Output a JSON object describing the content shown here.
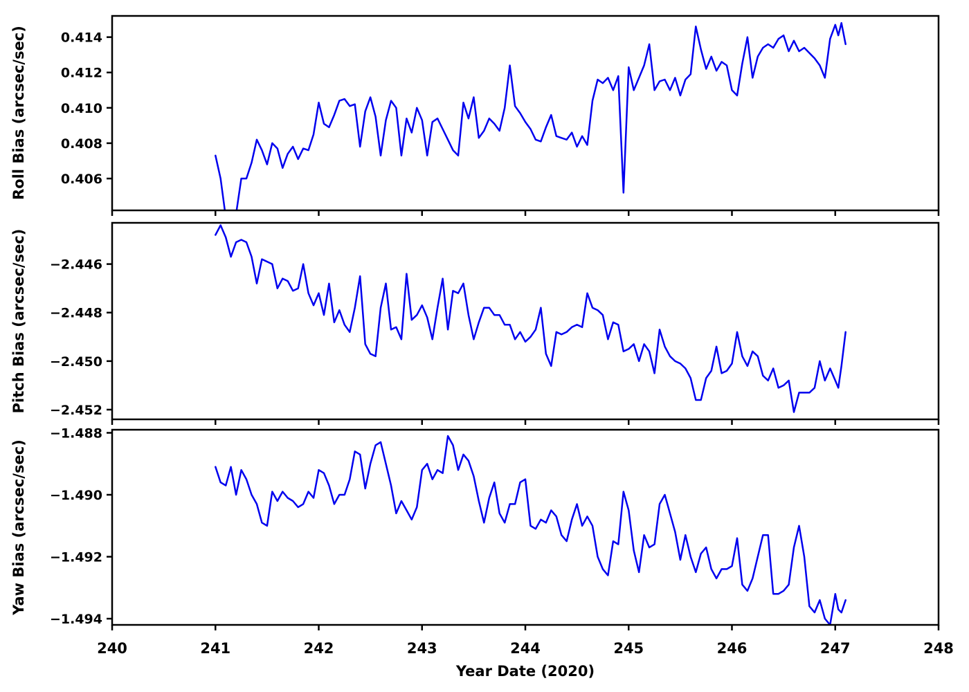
{
  "colors": {
    "line": "#0000ee",
    "axis": "#000000",
    "background": "#ffffff"
  },
  "chart_data": {
    "type": "line",
    "title": "",
    "xlabel": "Year Date (2020)",
    "xlim": [
      240,
      248
    ],
    "xticks": [
      240,
      241,
      242,
      243,
      244,
      245,
      246,
      247,
      248
    ],
    "grid": false,
    "legend": "none",
    "x": [
      241.0,
      241.05,
      241.1,
      241.15,
      241.2,
      241.25,
      241.3,
      241.35,
      241.4,
      241.45,
      241.5,
      241.55,
      241.6,
      241.65,
      241.7,
      241.75,
      241.8,
      241.85,
      241.9,
      241.95,
      242.0,
      242.05,
      242.1,
      242.15,
      242.2,
      242.25,
      242.3,
      242.35,
      242.4,
      242.45,
      242.5,
      242.55,
      242.6,
      242.65,
      242.7,
      242.75,
      242.8,
      242.85,
      242.9,
      242.95,
      243.0,
      243.05,
      243.1,
      243.15,
      243.2,
      243.25,
      243.3,
      243.35,
      243.4,
      243.45,
      243.5,
      243.55,
      243.6,
      243.65,
      243.7,
      243.75,
      243.8,
      243.85,
      243.9,
      243.95,
      244.0,
      244.05,
      244.1,
      244.15,
      244.2,
      244.25,
      244.3,
      244.35,
      244.4,
      244.45,
      244.5,
      244.55,
      244.6,
      244.65,
      244.7,
      244.75,
      244.8,
      244.85,
      244.9,
      244.95,
      245.0,
      245.05,
      245.1,
      245.15,
      245.2,
      245.25,
      245.3,
      245.35,
      245.4,
      245.45,
      245.5,
      245.55,
      245.6,
      245.65,
      245.7,
      245.75,
      245.8,
      245.85,
      245.9,
      245.95,
      246.0,
      246.05,
      246.1,
      246.15,
      246.2,
      246.25,
      246.3,
      246.35,
      246.4,
      246.45,
      246.5,
      246.55,
      246.6,
      246.65,
      246.7,
      246.75,
      246.8,
      246.85,
      246.9,
      246.95,
      247.0,
      247.03,
      247.06,
      247.1
    ],
    "panels": [
      {
        "name": "roll",
        "ylabel": "Roll Bias (arcsec/sec)",
        "yticks": [
          0.406,
          0.408,
          0.41,
          0.412,
          0.414
        ],
        "ylim": [
          0.4042,
          0.4152
        ],
        "y": [
          0.4073,
          0.406,
          0.4038,
          0.4034,
          0.404,
          0.406,
          0.406,
          0.4069,
          0.4082,
          0.4076,
          0.4068,
          0.408,
          0.4077,
          0.4066,
          0.4074,
          0.4078,
          0.4071,
          0.4077,
          0.4076,
          0.4085,
          0.4103,
          0.4091,
          0.4089,
          0.4096,
          0.4104,
          0.4105,
          0.4101,
          0.4102,
          0.4078,
          0.4098,
          0.4106,
          0.4095,
          0.4073,
          0.4093,
          0.4104,
          0.41,
          0.4073,
          0.4094,
          0.4086,
          0.41,
          0.4093,
          0.4073,
          0.4092,
          0.4094,
          0.4088,
          0.4082,
          0.4076,
          0.4073,
          0.4103,
          0.4094,
          0.4106,
          0.4083,
          0.4087,
          0.4094,
          0.4091,
          0.4087,
          0.41,
          0.4124,
          0.4101,
          0.4097,
          0.4092,
          0.4088,
          0.4082,
          0.4081,
          0.4089,
          0.4096,
          0.4084,
          0.4083,
          0.4082,
          0.4086,
          0.4078,
          0.4084,
          0.4079,
          0.4104,
          0.4116,
          0.4114,
          0.4117,
          0.411,
          0.4118,
          0.4052,
          0.4123,
          0.411,
          0.4117,
          0.4124,
          0.4136,
          0.411,
          0.4115,
          0.4116,
          0.411,
          0.4117,
          0.4107,
          0.4116,
          0.4119,
          0.4146,
          0.4133,
          0.4122,
          0.4129,
          0.4121,
          0.4126,
          0.4124,
          0.411,
          0.4107,
          0.4125,
          0.414,
          0.4117,
          0.4129,
          0.4134,
          0.4136,
          0.4134,
          0.4139,
          0.4141,
          0.4132,
          0.4138,
          0.4132,
          0.4134,
          0.4131,
          0.4128,
          0.4124,
          0.4117,
          0.4139,
          0.4147,
          0.4141,
          0.4148,
          0.4136
        ]
      },
      {
        "name": "pitch",
        "ylabel": "Pitch Bias (arcsec/sec)",
        "yticks": [
          -2.452,
          -2.45,
          -2.448,
          -2.446
        ],
        "ylim": [
          -2.4524,
          -2.4443
        ],
        "y": [
          -2.4448,
          -2.4444,
          -2.4449,
          -2.4457,
          -2.4451,
          -2.445,
          -2.4451,
          -2.4457,
          -2.4468,
          -2.4458,
          -2.4459,
          -2.446,
          -2.447,
          -2.4466,
          -2.4467,
          -2.4471,
          -2.447,
          -2.446,
          -2.4472,
          -2.4477,
          -2.4472,
          -2.4481,
          -2.4468,
          -2.4484,
          -2.4479,
          -2.4485,
          -2.4488,
          -2.4478,
          -2.4465,
          -2.4493,
          -2.4497,
          -2.4498,
          -2.4478,
          -2.4468,
          -2.4487,
          -2.4486,
          -2.4491,
          -2.4464,
          -2.4483,
          -2.4481,
          -2.4477,
          -2.4482,
          -2.4491,
          -2.4478,
          -2.4466,
          -2.4487,
          -2.4471,
          -2.4472,
          -2.4468,
          -2.4481,
          -2.4491,
          -2.4484,
          -2.4478,
          -2.4478,
          -2.4481,
          -2.4481,
          -2.4485,
          -2.4485,
          -2.4491,
          -2.4488,
          -2.4492,
          -2.449,
          -2.4487,
          -2.4478,
          -2.4497,
          -2.4502,
          -2.4488,
          -2.4489,
          -2.4488,
          -2.4486,
          -2.4485,
          -2.4486,
          -2.4472,
          -2.4478,
          -2.4479,
          -2.4481,
          -2.4491,
          -2.4484,
          -2.4485,
          -2.4496,
          -2.4495,
          -2.4493,
          -2.45,
          -2.4493,
          -2.4496,
          -2.4505,
          -2.4487,
          -2.4494,
          -2.4498,
          -2.45,
          -2.4501,
          -2.4503,
          -2.4507,
          -2.4516,
          -2.4516,
          -2.4507,
          -2.4504,
          -2.4494,
          -2.4505,
          -2.4504,
          -2.4501,
          -2.4488,
          -2.4498,
          -2.4502,
          -2.4496,
          -2.4498,
          -2.4506,
          -2.4508,
          -2.4503,
          -2.4511,
          -2.451,
          -2.4508,
          -2.4521,
          -2.4513,
          -2.4513,
          -2.4513,
          -2.4511,
          -2.45,
          -2.4508,
          -2.4503,
          -2.4508,
          -2.4511,
          -2.4502,
          -2.4488
        ]
      },
      {
        "name": "yaw",
        "ylabel": "Yaw Bias (arcsec/sec)",
        "yticks": [
          -1.494,
          -1.492,
          -1.49,
          -1.488
        ],
        "ylim": [
          -1.4942,
          -1.4879
        ],
        "y": [
          -1.4891,
          -1.4896,
          -1.4897,
          -1.4891,
          -1.49,
          -1.4892,
          -1.4895,
          -1.49,
          -1.4903,
          -1.4909,
          -1.491,
          -1.4899,
          -1.4902,
          -1.4899,
          -1.4901,
          -1.4902,
          -1.4904,
          -1.4903,
          -1.4899,
          -1.4901,
          -1.4892,
          -1.4893,
          -1.4897,
          -1.4903,
          -1.49,
          -1.49,
          -1.4895,
          -1.4886,
          -1.4887,
          -1.4898,
          -1.489,
          -1.4884,
          -1.4883,
          -1.489,
          -1.4897,
          -1.4906,
          -1.4902,
          -1.4905,
          -1.4908,
          -1.4904,
          -1.4892,
          -1.489,
          -1.4895,
          -1.4892,
          -1.4893,
          -1.4881,
          -1.4884,
          -1.4892,
          -1.4887,
          -1.4889,
          -1.4894,
          -1.4902,
          -1.4909,
          -1.4901,
          -1.4896,
          -1.4906,
          -1.4909,
          -1.4903,
          -1.4903,
          -1.4896,
          -1.4895,
          -1.491,
          -1.4911,
          -1.4908,
          -1.4909,
          -1.4905,
          -1.4907,
          -1.4913,
          -1.4915,
          -1.4908,
          -1.4903,
          -1.491,
          -1.4907,
          -1.491,
          -1.492,
          -1.4924,
          -1.4926,
          -1.4915,
          -1.4916,
          -1.4899,
          -1.4905,
          -1.4918,
          -1.4925,
          -1.4913,
          -1.4917,
          -1.4916,
          -1.4903,
          -1.49,
          -1.4906,
          -1.4912,
          -1.4921,
          -1.4913,
          -1.492,
          -1.4925,
          -1.4919,
          -1.4917,
          -1.4924,
          -1.4927,
          -1.4924,
          -1.4924,
          -1.4923,
          -1.4914,
          -1.4929,
          -1.4931,
          -1.4927,
          -1.492,
          -1.4913,
          -1.4913,
          -1.4932,
          -1.4932,
          -1.4931,
          -1.4929,
          -1.4917,
          -1.491,
          -1.492,
          -1.4936,
          -1.4938,
          -1.4934,
          -1.494,
          -1.4942,
          -1.4932,
          -1.4937,
          -1.4938,
          -1.4934
        ]
      }
    ]
  }
}
